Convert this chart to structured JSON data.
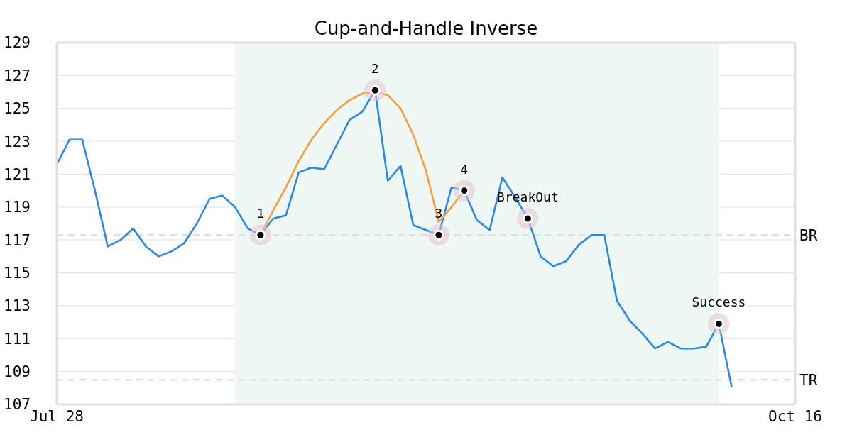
{
  "chart_data": {
    "type": "line",
    "title": "Cup-and-Handle Inverse",
    "categories": [
      "Jul 28",
      null,
      null,
      null,
      null,
      null,
      null,
      null,
      null,
      null,
      null,
      null,
      null,
      null,
      null,
      null,
      null,
      null,
      null,
      null,
      null,
      null,
      null,
      null,
      null,
      null,
      null,
      null,
      null,
      null,
      null,
      null,
      null,
      null,
      null,
      null,
      null,
      null,
      null,
      null,
      null,
      null,
      null,
      null,
      null,
      null,
      null,
      null,
      null,
      null,
      null,
      null,
      null,
      null,
      null,
      null,
      null,
      null,
      "Oct 16"
    ],
    "series": [
      {
        "color": "#2b87e8",
        "values": [
          121.6,
          123.1,
          123.1,
          120.0,
          116.6,
          117.0,
          117.7,
          116.6,
          116.0,
          116.3,
          116.8,
          118.0,
          119.5,
          119.7,
          119.0,
          117.7,
          117.3,
          118.3,
          118.5,
          121.1,
          121.4,
          121.3,
          122.8,
          124.3,
          124.8,
          126.1,
          120.6,
          121.5,
          117.9,
          117.6,
          117.3,
          120.2,
          120.0,
          118.2,
          117.6,
          120.8,
          119.6,
          118.3,
          116.0,
          115.4,
          115.7,
          116.7,
          117.3,
          117.3,
          113.3,
          112.1,
          111.3,
          110.4,
          110.8,
          110.4,
          110.4,
          110.5,
          111.9,
          108.1,
          null,
          null,
          null,
          null,
          null
        ]
      },
      {
        "color": "#f89c3c",
        "values": [
          null,
          null,
          null,
          null,
          null,
          null,
          null,
          null,
          null,
          null,
          null,
          null,
          null,
          null,
          null,
          null,
          117.3,
          118.8,
          120.2,
          121.8,
          123.1,
          124.1,
          124.9,
          125.5,
          125.9,
          126.0,
          125.8,
          125.0,
          123.4,
          121.2,
          118.1,
          119.0,
          120.0,
          null,
          null,
          null,
          null,
          null,
          null,
          null,
          null,
          null,
          null,
          null,
          null,
          null,
          null,
          null,
          null,
          null,
          null,
          null,
          null,
          null,
          null,
          null,
          null,
          null,
          null
        ]
      },
      {
        "type": "scatter",
        "name": "1",
        "color": "#000000",
        "marker": "circle",
        "values": [
          null,
          null,
          null,
          null,
          null,
          null,
          null,
          null,
          null,
          null,
          null,
          null,
          null,
          null,
          null,
          null,
          117.3,
          null,
          null,
          null,
          null,
          null,
          null,
          null,
          null,
          null,
          null,
          null,
          null,
          null,
          null,
          null,
          null,
          null,
          null,
          null,
          null,
          null,
          null,
          null,
          null,
          null,
          null,
          null,
          null,
          null,
          null,
          null,
          null,
          null,
          null,
          null,
          null,
          null,
          null,
          null,
          null,
          null,
          null
        ]
      },
      {
        "type": "scatter",
        "name": "2",
        "color": "#000000",
        "marker": "circle",
        "values": [
          null,
          null,
          null,
          null,
          null,
          null,
          null,
          null,
          null,
          null,
          null,
          null,
          null,
          null,
          null,
          null,
          null,
          null,
          null,
          null,
          null,
          null,
          null,
          null,
          null,
          126.1,
          null,
          null,
          null,
          null,
          null,
          null,
          null,
          null,
          null,
          null,
          null,
          null,
          null,
          null,
          null,
          null,
          null,
          null,
          null,
          null,
          null,
          null,
          null,
          null,
          null,
          null,
          null,
          null,
          null,
          null,
          null,
          null,
          null
        ]
      },
      {
        "type": "scatter",
        "name": "3",
        "color": "#000000",
        "marker": "circle",
        "values": [
          null,
          null,
          null,
          null,
          null,
          null,
          null,
          null,
          null,
          null,
          null,
          null,
          null,
          null,
          null,
          null,
          null,
          null,
          null,
          null,
          null,
          null,
          null,
          null,
          null,
          null,
          null,
          null,
          null,
          null,
          117.3,
          null,
          null,
          null,
          null,
          null,
          null,
          null,
          null,
          null,
          null,
          null,
          null,
          null,
          null,
          null,
          null,
          null,
          null,
          null,
          null,
          null,
          null,
          null,
          null,
          null,
          null,
          null,
          null
        ]
      },
      {
        "type": "scatter",
        "name": "4",
        "color": "#000000",
        "marker": "circle",
        "values": [
          null,
          null,
          null,
          null,
          null,
          null,
          null,
          null,
          null,
          null,
          null,
          null,
          null,
          null,
          null,
          null,
          null,
          null,
          null,
          null,
          null,
          null,
          null,
          null,
          null,
          null,
          null,
          null,
          null,
          null,
          null,
          null,
          120.0,
          null,
          null,
          null,
          null,
          null,
          null,
          null,
          null,
          null,
          null,
          null,
          null,
          null,
          null,
          null,
          null,
          null,
          null,
          null,
          null,
          null,
          null,
          null,
          null,
          null,
          null
        ]
      },
      {
        "type": "scatter",
        "name": "BreakOut",
        "color": "#000000",
        "marker": "circle",
        "values": [
          null,
          null,
          null,
          null,
          null,
          null,
          null,
          null,
          null,
          null,
          null,
          null,
          null,
          null,
          null,
          null,
          null,
          null,
          null,
          null,
          null,
          null,
          null,
          null,
          null,
          null,
          null,
          null,
          null,
          null,
          null,
          null,
          null,
          null,
          null,
          null,
          null,
          118.3,
          null,
          null,
          null,
          null,
          null,
          null,
          null,
          null,
          null,
          null,
          null,
          null,
          null,
          null,
          null,
          null,
          null,
          null,
          null,
          null,
          null
        ]
      },
      {
        "type": "scatter",
        "name": "Success",
        "color": "#000000",
        "marker": "circle",
        "values": [
          null,
          null,
          null,
          null,
          null,
          null,
          null,
          null,
          null,
          null,
          null,
          null,
          null,
          null,
          null,
          null,
          null,
          null,
          null,
          null,
          null,
          null,
          null,
          null,
          null,
          null,
          null,
          null,
          null,
          null,
          null,
          null,
          null,
          null,
          null,
          null,
          null,
          null,
          null,
          null,
          null,
          null,
          null,
          null,
          null,
          null,
          null,
          null,
          null,
          null,
          null,
          null,
          111.9,
          null,
          null,
          null,
          null,
          null,
          null
        ]
      }
    ],
    "ref_lines": [
      {
        "axis": "y",
        "value": 117.3,
        "label": "BR",
        "color": "#e0e0e0",
        "line_style": "dashed"
      },
      {
        "axis": "y",
        "value": 108.5,
        "label": "TR",
        "color": "#e0e0e0",
        "line_style": "dashed"
      }
    ],
    "ylim": [
      107,
      129
    ],
    "yticks": [
      107,
      109,
      111,
      113,
      115,
      117,
      119,
      121,
      123,
      125,
      127,
      129
    ],
    "grid": "y"
  }
}
